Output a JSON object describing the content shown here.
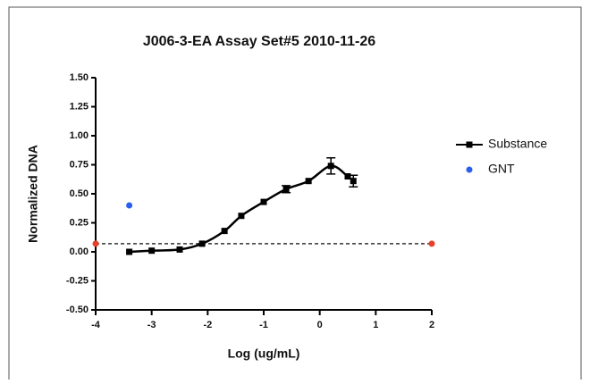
{
  "chart_data": {
    "type": "scatter",
    "title": "J006-3-EA Assay Set#5 2010-11-26",
    "x_label": "Log (ug/mL)",
    "y_label": "Normalized DNA",
    "xlim": [
      -4,
      2
    ],
    "xticks": [
      -4,
      -3,
      -2,
      -1,
      0,
      1,
      2
    ],
    "ylim": [
      -0.5,
      1.5
    ],
    "yticks": [
      {
        "value": -0.5,
        "label": "-0.50"
      },
      {
        "value": -0.25,
        "label": "-0.25"
      },
      {
        "value": 0,
        "label": "0.00"
      },
      {
        "value": 0.25,
        "label": "0.25"
      },
      {
        "value": 0.5,
        "label": "0.50"
      },
      {
        "value": 0.75,
        "label": "0.75"
      },
      {
        "value": 1,
        "label": "1.00"
      },
      {
        "value": 1.25,
        "label": "1.25"
      },
      {
        "value": 1.5,
        "label": "1.50"
      }
    ],
    "series": [
      {
        "name": "Substance",
        "color": "#000000",
        "connected": true,
        "x": [
          -3.4,
          -3.0,
          -2.5,
          -2.1,
          -1.7,
          -1.4,
          -1.0,
          -0.6,
          -0.2,
          0.2,
          0.5,
          0.6
        ],
        "values": [
          0.0,
          0.01,
          0.02,
          0.07,
          0.18,
          0.31,
          0.43,
          0.54,
          0.61,
          0.74,
          0.65,
          0.61
        ],
        "errors": [
          null,
          null,
          null,
          null,
          null,
          null,
          null,
          0.03,
          null,
          0.07,
          null,
          0.05
        ]
      },
      {
        "name": "GNT",
        "color": "#2a5ff0",
        "connected": false,
        "x": [
          -3.4
        ],
        "values": [
          0.4
        ]
      }
    ],
    "reference_line": {
      "value": 0.07,
      "color": "#333333"
    },
    "reference_points": {
      "x": [
        -4,
        2
      ],
      "values": [
        0.07,
        0.07
      ],
      "color": "#e8402a"
    }
  }
}
